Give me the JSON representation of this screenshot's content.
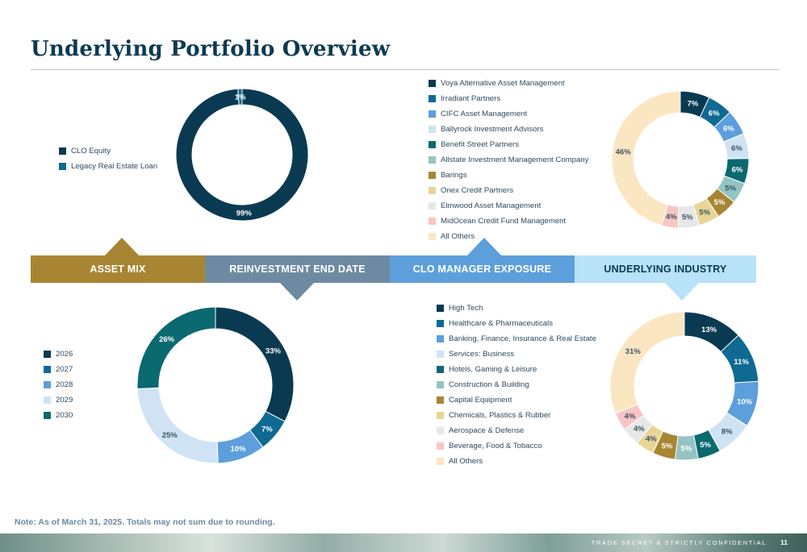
{
  "title": "Underlying Portfolio Overview",
  "sections": [
    "ASSET MIX",
    "REINVESTMENT END DATE",
    "CLO MANAGER EXPOSURE",
    "UNDERLYING INDUSTRY"
  ],
  "note": "Note: As of March 31, 2025. Totals may not sum due to rounding.",
  "footer": {
    "confidential": "TRADE SECRET & STRICTLY CONFIDENTIAL",
    "page": "11"
  },
  "colors": {
    "navy": "#0a3a52",
    "blue": "#0e6a93",
    "lightblue": "#5c9fdb",
    "paleblue": "#cfe3f5",
    "teal": "#0b6970",
    "seafoam": "#93c4c2",
    "gold": "#a88532",
    "sand": "#e8d596",
    "lightgray": "#e7e7e7",
    "pink": "#f7c6c4",
    "cream": "#fbe6c2",
    "band_gold": "#a88532",
    "band_slate": "#6e8aa3",
    "band_blue": "#5c9fdb",
    "band_pale": "#b8e2f8"
  },
  "chart_data": [
    {
      "type": "pie",
      "title": "ASSET MIX",
      "categories": [
        "CLO Equity",
        "Legacy Real Estate Loan"
      ],
      "values": [
        99,
        1
      ],
      "labels": [
        "99%",
        "1%"
      ],
      "colors": [
        "#0a3a52",
        "#0e6a93"
      ]
    },
    {
      "type": "pie",
      "title": "CLO MANAGER EXPOSURE",
      "categories": [
        "Voya Alternative Asset Management",
        "Irradiant Partners",
        "CIFC Asset Management",
        "Ballyrock Investment Advisors",
        "Benefit Street Partners",
        "Allstate Investment Management Company",
        "Barings",
        "Onex Credit Partners",
        "Elmwood Asset Management",
        "MidOcean Credit Fund Management",
        "All Others"
      ],
      "values": [
        7,
        6,
        6,
        6,
        6,
        5,
        5,
        5,
        5,
        4,
        46
      ],
      "labels": [
        "7%",
        "6%",
        "6%",
        "6%",
        "6%",
        "5%",
        "5%",
        "5%",
        "5%",
        "4%",
        "46%"
      ],
      "colors": [
        "#0a3a52",
        "#0e6a93",
        "#5c9fdb",
        "#cfe3f5",
        "#0b6970",
        "#93c4c2",
        "#a88532",
        "#e8d596",
        "#e7e7e7",
        "#f7c6c4",
        "#fbe6c2"
      ]
    },
    {
      "type": "pie",
      "title": "REINVESTMENT END DATE",
      "categories": [
        "2026",
        "2027",
        "2028",
        "2029",
        "2030"
      ],
      "values": [
        33,
        7,
        10,
        25,
        26
      ],
      "labels": [
        "33%",
        "7%",
        "10%",
        "25%",
        "26%"
      ],
      "colors": [
        "#0a3a52",
        "#0e6a93",
        "#5c9fdb",
        "#cfe3f5",
        "#0b6970"
      ]
    },
    {
      "type": "pie",
      "title": "UNDERLYING INDUSTRY",
      "categories": [
        "High Tech",
        "Healthcare & Pharmaceuticals",
        "Banking, Finance, Insurance & Real Estate",
        "Services: Business",
        "Hotels, Gaming & Leisure",
        "Construction & Building",
        "Capital Equipment",
        "Chemicals, Plastics & Rubber",
        "Aerospace & Defense",
        "Beverage, Food & Tobacco",
        "All Others"
      ],
      "values": [
        13,
        11,
        10,
        8,
        5,
        5,
        5,
        4,
        4,
        4,
        31
      ],
      "labels": [
        "13%",
        "11%",
        "10%",
        "8%",
        "5%",
        "5%",
        "5%",
        "4%",
        "4%",
        "4%",
        "31%"
      ],
      "colors": [
        "#0a3a52",
        "#0e6a93",
        "#5c9fdb",
        "#cfe3f5",
        "#0b6970",
        "#93c4c2",
        "#a88532",
        "#e8d596",
        "#e7e7e7",
        "#f7c6c4",
        "#fbe6c2"
      ]
    }
  ]
}
